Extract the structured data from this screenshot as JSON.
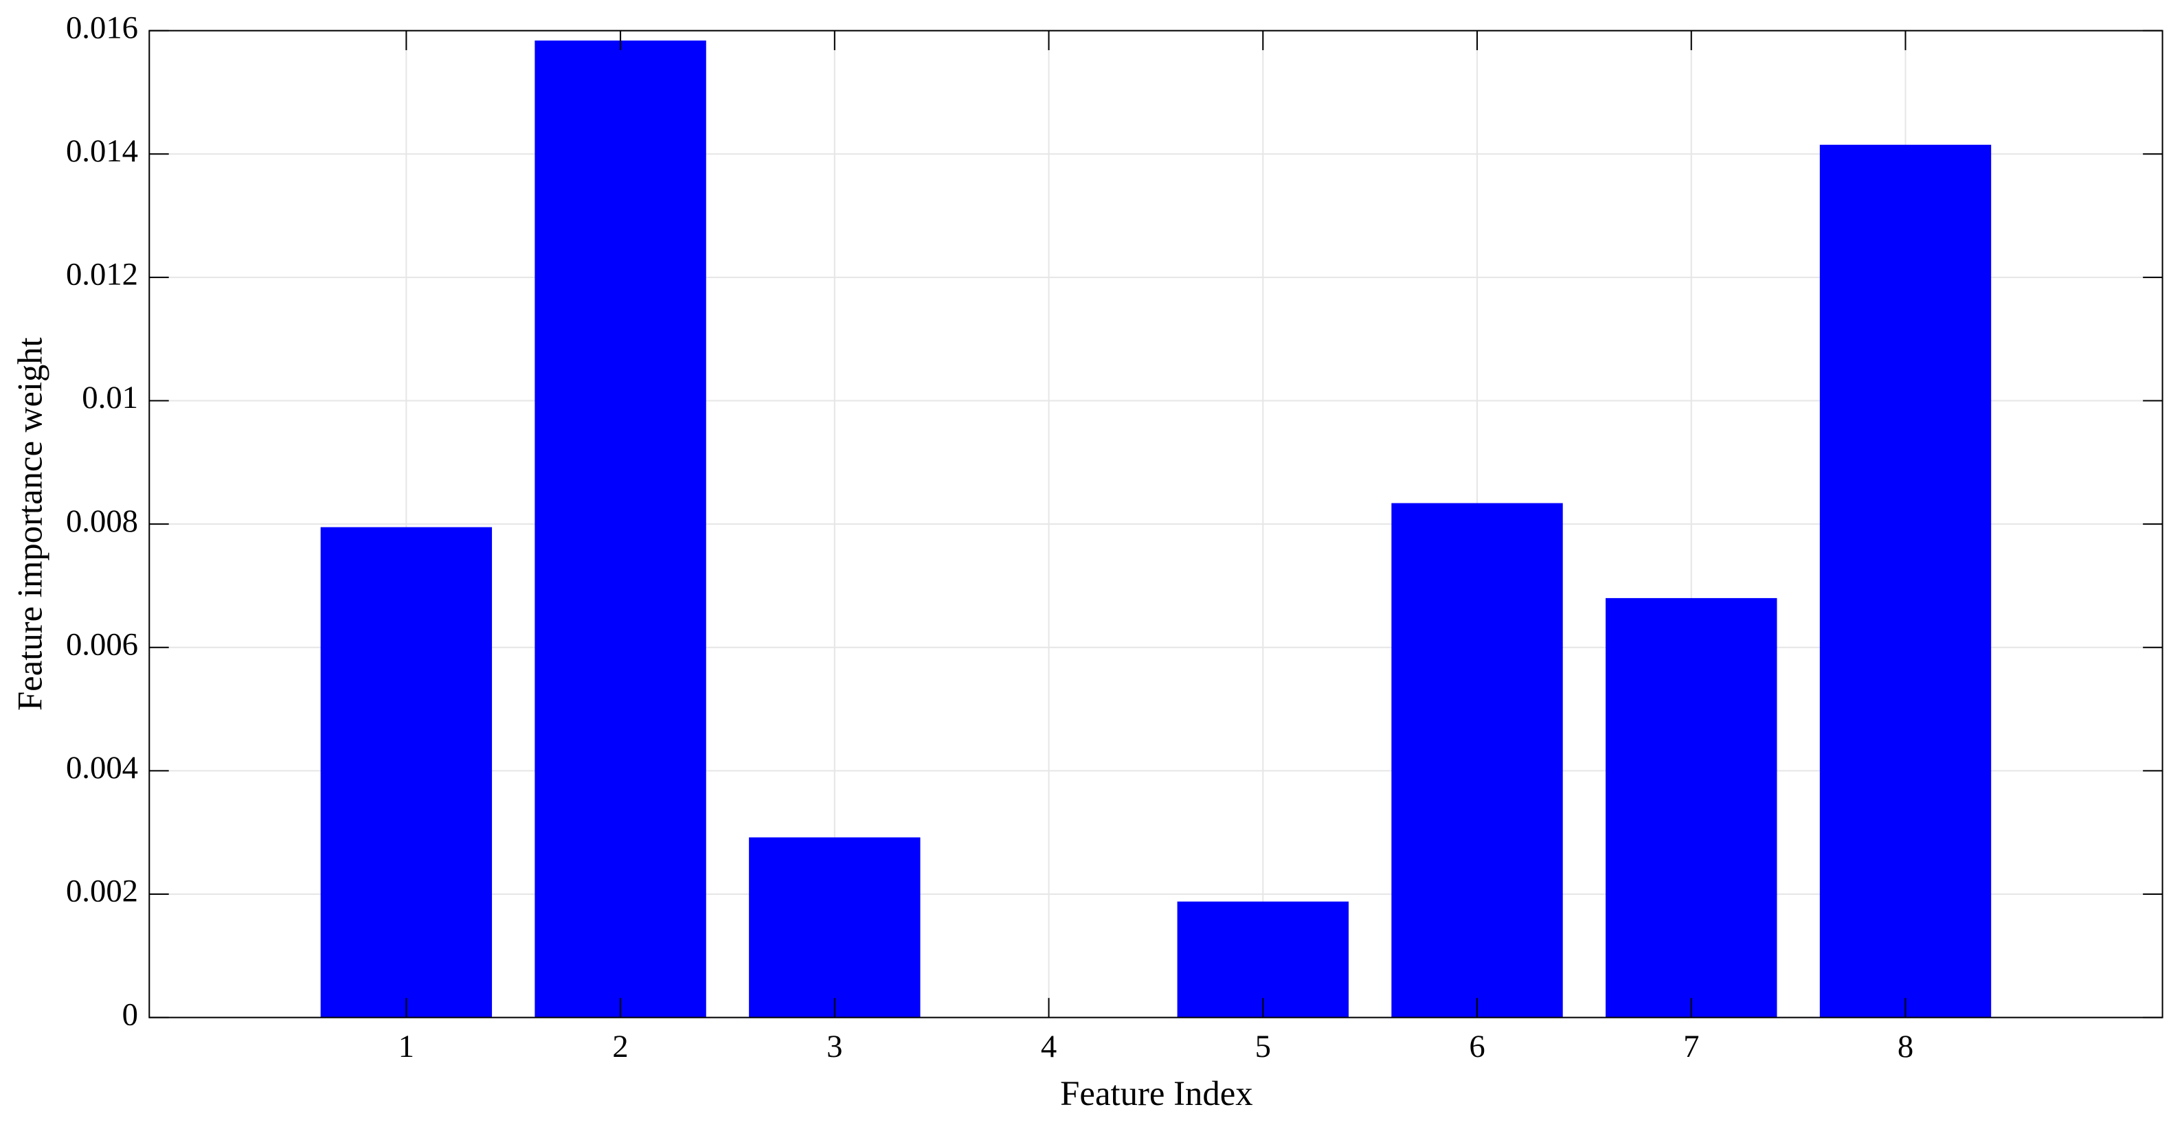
{
  "chart_data": {
    "type": "bar",
    "x": [
      1,
      2,
      3,
      4,
      5,
      6,
      7,
      8
    ],
    "values": [
      0.00795,
      0.01584,
      0.00292,
      0,
      0.00188,
      0.00834,
      0.0068,
      0.01415
    ],
    "color": "#0000ff",
    "xlabel": "Feature Index",
    "ylabel": "Feature importance weight",
    "xlim": [
      -0.2,
      9.2
    ],
    "xticks": [
      1,
      2,
      3,
      4,
      5,
      6,
      7,
      8
    ],
    "ylim": [
      0,
      0.016
    ],
    "yticks": [
      0,
      0.002,
      0.004,
      0.006,
      0.008,
      0.01,
      0.012,
      0.014,
      0.016
    ],
    "grid": true
  }
}
